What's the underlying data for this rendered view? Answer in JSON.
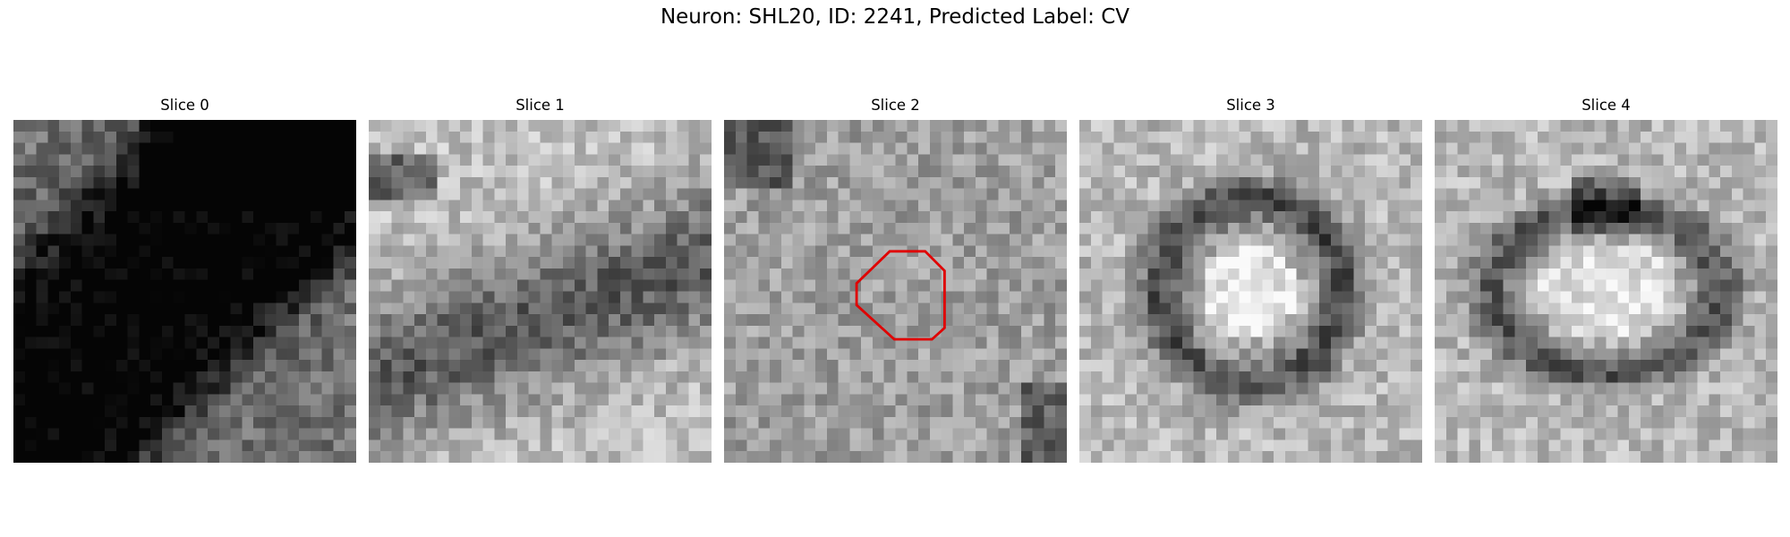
{
  "figure": {
    "title": "Neuron: SHL20, ID: 2241, Predicted Label: CV"
  },
  "panels": [
    {
      "label": "Slice 0",
      "seed": 11,
      "pattern": "blob"
    },
    {
      "label": "Slice 1",
      "seed": 23,
      "pattern": "band"
    },
    {
      "label": "Slice 2",
      "seed": 37,
      "pattern": "noise",
      "outline": true
    },
    {
      "label": "Slice 3",
      "seed": 41,
      "pattern": "ring"
    },
    {
      "label": "Slice 4",
      "seed": 59,
      "pattern": "ring-wide"
    }
  ],
  "outline_color": "#e00000",
  "colormap": "grayscale"
}
